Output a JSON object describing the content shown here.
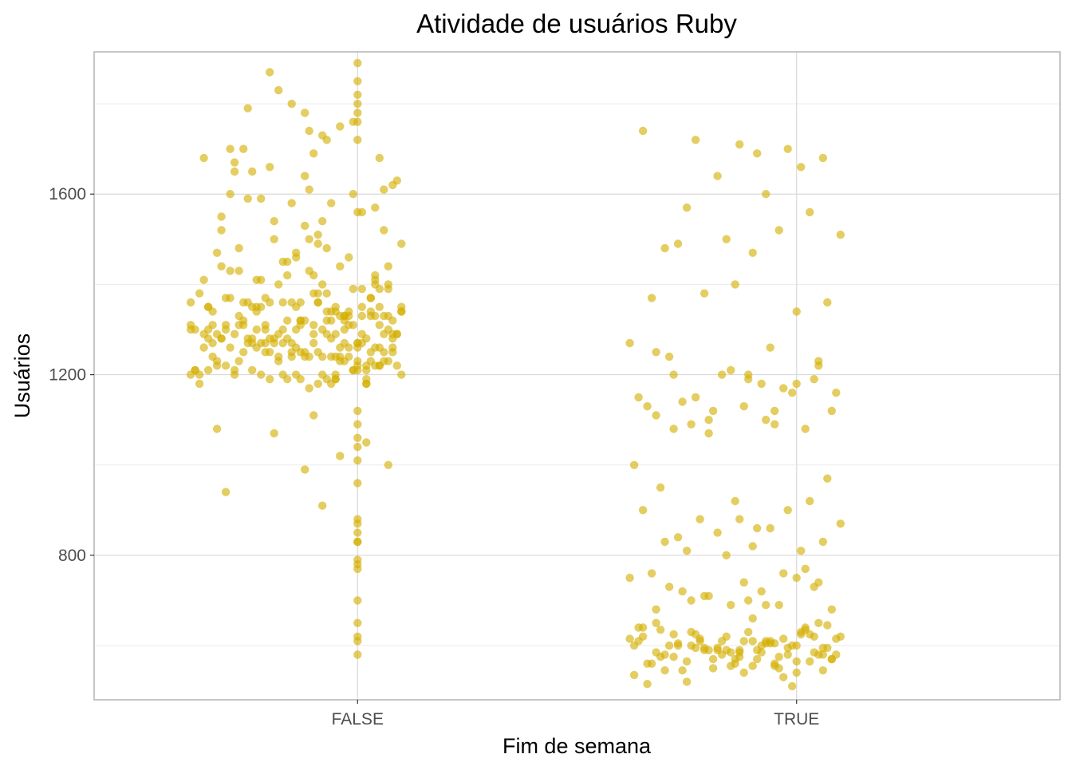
{
  "chart_data": {
    "type": "scatter",
    "title": "Atividade de usuários Ruby",
    "xlabel": "Fim de semana",
    "ylabel": "Usuários",
    "categories": [
      "FALSE",
      "TRUE"
    ],
    "yticks": [
      800,
      1200,
      1600
    ],
    "ylim": [
      480,
      1915
    ],
    "grid": true,
    "legend": "none",
    "point_color": "#D4AF00",
    "series": [
      {
        "category": "FALSE",
        "jitter": [
          0.85,
          0.62,
          1.02,
          0.9,
          0.78,
          0.95,
          1.05,
          0.71,
          0.98,
          1.1,
          0.83,
          0.93,
          0.66,
          1.01,
          0.88,
          0.74,
          1.07,
          0.96,
          0.8,
          0.91,
          1.04,
          0.69,
          0.87,
          0.99,
          0.76,
          1.09,
          0.92,
          0.82,
          1.03,
          0.73,
          0.89,
          1.0,
          0.67,
          0.94,
          1.06,
          0.79,
          0.86,
          1.08,
          0.72,
          0.97,
          0.84,
          0.63,
          1.02,
          0.9,
          0.77,
          0.95,
          1.05,
          0.7,
          0.93,
          0.81,
          1.0,
          0.88,
          0.65,
          1.07,
          0.96,
          0.75,
          0.91,
          1.04,
          0.68,
          0.99,
          0.83,
          0.92,
          1.1,
          0.78,
          0.87,
          0.64,
          1.01,
          0.94,
          0.73,
          1.06,
          0.89,
          0.8,
          0.97,
          0.66,
          1.03,
          0.85,
          0.91,
          1.08,
          0.71,
          0.95,
          0.82,
          0.76,
          1.0,
          0.93,
          0.69,
          1.05,
          0.86,
          0.79,
          0.98,
          0.62,
          1.04,
          0.9,
          0.74,
          1.09,
          0.84,
          0.67,
          0.96,
          1.02,
          0.88,
          0.77,
          0.92,
          1.07,
          0.7,
          0.99,
          0.81,
          0.65,
          1.01,
          0.94,
          0.75,
          1.06,
          0.87,
          0.83,
          0.97,
          0.72,
          1.03,
          0.89,
          0.68,
          1.1,
          0.91,
          0.78,
          0.95,
          0.63,
          1.05,
          0.86,
          0.8,
          1.0,
          0.93,
          0.73,
          1.08,
          0.85,
          0.69,
          0.98,
          0.76,
          1.04,
          0.9,
          0.66,
          1.02,
          0.92,
          0.82,
          0.74,
          1.07,
          0.88,
          0.71,
          0.96,
          1.09,
          0.79,
          0.84,
          0.64,
          1.01,
          0.94,
          0.77,
          1.06,
          0.87,
          0.7,
          0.99,
          0.81,
          1.03,
          0.89,
          0.67,
          1.05,
          0.91,
          0.75,
          0.95,
          0.62,
          1.0,
          0.86,
          0.83,
          1.08,
          0.72,
          0.97,
          0.8,
          0.68,
          1.04,
          0.93,
          0.76,
          1.1,
          0.85,
          0.73,
          0.98,
          0.9,
          0.65,
          1.02,
          0.88,
          0.78,
          0.96,
          1.07,
          0.71,
          0.92,
          0.84,
          0.69,
          1.01,
          0.87,
          0.74,
          1.06,
          0.94,
          0.63,
          0.99,
          0.81,
          0.77,
          1.03,
          0.91,
          0.66,
          1.05,
          0.89,
          0.79,
          0.95,
          0.7,
          1.09,
          0.86,
          0.82,
          1.0,
          0.75,
          0.97,
          0.64,
          1.04,
          0.93,
          0.8,
          0.72,
          1.08,
          0.85,
          0.68,
          0.98,
          0.9,
          0.76,
          1.02,
          0.88,
          0.67,
          0.96,
          1.07,
          0.83,
          0.73,
          0.92,
          1.1,
          0.79,
          0.87,
          0.65,
          1.01,
          0.94,
          0.71,
          1.06,
          0.84,
          0.78,
          0.99,
          0.62,
          1.03,
          0.91,
          0.74,
          1.05,
          0.89,
          0.69,
          0.95,
          0.82,
          1.0,
          0.86,
          0.77,
          1.08,
          0.66,
          0.97,
          0.8,
          0.93,
          1.04,
          0.72,
          0.85,
          0.98,
          0.75,
          1.02,
          0.9,
          0.68,
          0.88,
          0.96,
          0.81,
          1.07,
          0.7,
          0.92
        ],
        "y": [
          1250,
          1310,
          1180,
          1420,
          1270,
          1350,
          1220,
          1600,
          1330,
          1490,
          1200,
          1380,
          1280,
          1560,
          1240,
          1700,
          1300,
          1440,
          1190,
          1360,
          1260,
          1520,
          1320,
          1210,
          1650,
          1290,
          1400,
          1230,
          1340,
          1480,
          1170,
          1270,
          1310,
          1580,
          1250,
          1370,
          1200,
          1620,
          1290,
          1330,
          1450,
          1210,
          1280,
          1690,
          1350,
          1240,
          1390,
          1300,
          1190,
          1540,
          1260,
          1320,
          1410,
          1230,
          1750,
          1280,
          1360,
          1220,
          1470,
          1310,
          1270,
          1200,
          1340,
          1590,
          1250,
          1380,
          1290,
          1180,
          1430,
          1330,
          1240,
          1660,
          1300,
          1210,
          1370,
          1270,
          1510,
          1320,
          1260,
          1190,
          1400,
          1350,
          1230,
          1720,
          1280,
          1310,
          1460,
          1250,
          1340,
          1200,
          1570,
          1290,
          1360,
          1220,
          1420,
          1270,
          1330,
          1180,
          1640,
          1300,
          1240,
          1390,
          1310,
          1210,
          1500,
          1260,
          1350,
          1280,
          1790,
          1230,
          1320,
          1450,
          1270,
          1200,
          1370,
          1610,
          1290,
          1340,
          1250,
          1410,
          1190,
          1300,
          1680,
          1260,
          1360,
          1220,
          1480,
          1330,
          1280,
          1240,
          1550,
          1310,
          1210,
          1400,
          1270,
          1350,
          1190,
          1730,
          1290,
          1320,
          1440,
          1250,
          1370,
          1230,
          1630,
          1300,
          1280,
          1200,
          1390,
          1340,
          1260,
          1520,
          1310,
          1220,
          1760,
          1270,
          1330,
          1430,
          1240,
          1350,
          1180,
          1590,
          1290,
          1300,
          1210,
          1470,
          1360,
          1250,
          1670,
          1320,
          1280,
          1230,
          1410,
          1340,
          1270,
          1200,
          1800,
          1310,
          1260,
          1380,
          1290,
          1220,
          1530,
          1350,
          1240,
          1330,
          1700,
          1300,
          1190,
          1440,
          1270,
          1360,
          1250,
          1610,
          1320,
          1210,
          1390,
          1280,
          1340,
          1230,
          1490,
          1300,
          1260,
          1740,
          1310,
          1200,
          1370,
          1290,
          1350,
          1240,
          1560,
          1270,
          1330,
          1180,
          1420,
          1320,
          1250,
          1650,
          1290,
          1360,
          1220,
          1460,
          1310,
          1280,
          1210,
          1780,
          1340,
          1260,
          1400,
          1300,
          1230,
          1540,
          1350,
          1270,
          1190,
          1680,
          1330,
          1240,
          1430,
          1290,
          1320,
          1200,
          1600,
          1360,
          1250,
          1380,
          1310,
          1220,
          1500,
          1280,
          1340,
          1830,
          1270,
          1300,
          1410,
          1260,
          1350,
          1230,
          1870,
          1290,
          1330,
          1210,
          1580,
          1240,
          1360,
          1050,
          1110,
          1080,
          990,
          1020,
          1070,
          1000,
          940,
          910,
          850,
          880,
          830,
          790,
          770,
          780,
          700,
          650,
          620,
          580,
          610,
          1040,
          1090,
          1010,
          830,
          870,
          1120,
          1060,
          960,
          1850,
          1820,
          1890,
          1760,
          1780,
          1720,
          1800
        ]
      },
      {
        "category": "TRUE",
        "jitter": [
          0.9,
          0.7,
          1.05,
          0.82,
          0.95,
          0.65,
          1.0,
          0.88,
          0.76,
          1.08,
          0.93,
          0.68,
          0.85,
          1.02,
          0.79,
          0.97,
          0.72,
          1.06,
          0.9,
          0.63,
          0.87,
          1.01,
          0.75,
          0.94,
          1.09,
          0.81,
          0.69,
          0.98,
          0.86,
          1.04,
          0.73,
          0.92,
          0.66,
          1.07,
          0.84,
          0.78,
          0.96,
          1.0,
          0.71,
          0.89,
          1.03,
          0.64,
          0.83,
          0.95,
          0.77,
          1.06,
          0.91,
          0.68,
          0.99,
          0.85,
          0.74,
          1.1,
          0.8,
          0.93,
          0.67,
          1.02,
          0.87,
          0.76,
          0.97,
          0.62,
          1.05,
          0.82,
          0.9,
          0.72,
          1.08,
          0.94,
          0.79,
          0.65,
          1.0,
          0.88,
          0.75,
          1.04,
          0.92,
          0.69,
          0.96,
          0.84,
          1.07,
          0.78,
          0.63,
          0.98,
          0.86,
          1.01,
          0.73,
          0.91,
          0.66,
          1.09,
          0.81,
          0.95,
          0.7,
          1.03,
          0.87,
          0.77,
          0.99,
          0.64,
          1.06,
          0.83,
          0.93,
          0.74,
          1.0,
          0.89,
          0.68,
          1.05,
          0.8,
          0.97,
          0.71,
          0.85,
          1.02,
          0.76,
          0.92,
          0.62,
          1.08,
          0.88,
          0.79,
          0.96,
          0.67,
          1.04,
          0.84,
          0.73,
          1.1,
          0.9,
          0.65,
          0.94,
          1.01,
          0.78,
          0.86,
          0.7,
          1.07,
          0.82,
          0.98,
          0.75,
          0.91,
          1.03,
          0.69,
          0.87,
          0.63,
          1.06,
          0.93,
          0.77,
          1.0,
          0.81,
          0.72,
          0.95,
          1.09,
          0.66,
          0.85,
          1.02,
          0.89,
          0.74,
          0.97,
          0.68,
          1.05,
          0.8,
          0.92,
          0.64,
          1.08,
          0.83,
          0.76,
          0.99,
          0.88,
          1.04,
          0.71,
          0.94,
          0.67,
          1.0,
          0.86,
          0.79,
          1.07,
          0.62,
          0.9,
          0.96,
          0.73,
          1.03,
          0.84,
          0.7,
          1.1,
          0.91,
          0.77,
          0.98,
          0.65,
          1.06,
          0.87,
          0.82,
          0.93,
          1.01,
          0.75,
          0.68,
          1.05,
          0.89,
          0.8,
          0.95,
          0.72,
          1.09,
          0.85,
          0.63,
          0.99,
          0.92,
          0.78,
          1.02,
          0.69,
          0.86,
          1.07,
          0.74,
          0.96,
          0.81
        ],
        "y": [
          610,
          580,
          650,
          590,
          560,
          620,
          600,
          540,
          630,
          570,
          605,
          585,
          555,
          640,
          595,
          615,
          575,
          545,
          660,
          600,
          590,
          625,
          565,
          610,
          580,
          550,
          635,
          595,
          570,
          620,
          605,
          585,
          560,
          645,
          590,
          615,
          575,
          540,
          600,
          630,
          565,
          610,
          580,
          555,
          625,
          595,
          570,
          650,
          600,
          585,
          545,
          620,
          590,
          610,
          560,
          635,
          575,
          600,
          530,
          615,
          580,
          595,
          555,
          625,
          570,
          605,
          590,
          640,
          565,
          610,
          520,
          585,
          600,
          575,
          550,
          620,
          595,
          610,
          535,
          580,
          560,
          630,
          600,
          590,
          515,
          615,
          570,
          605,
          545,
          625,
          585,
          595,
          510,
          640,
          580,
          610,
          690,
          720,
          750,
          700,
          680,
          740,
          710,
          760,
          730,
          690,
          770,
          700,
          720,
          750,
          680,
          740,
          710,
          690,
          760,
          730,
          800,
          840,
          870,
          820,
          900,
          860,
          810,
          880,
          920,
          830,
          970,
          850,
          900,
          810,
          860,
          920,
          950,
          880,
          1000,
          830,
          1100,
          1150,
          1180,
          1120,
          1200,
          1090,
          1160,
          1130,
          1210,
          1080,
          1190,
          1140,
          1170,
          1110,
          1220,
          1070,
          1180,
          1150,
          1120,
          1200,
          1090,
          1160,
          1130,
          1190,
          1240,
          1260,
          1370,
          1340,
          1400,
          1380,
          1360,
          1270,
          1470,
          1520,
          1490,
          1560,
          1500,
          1480,
          1510,
          1690,
          1720,
          1700,
          1740,
          1680,
          1710,
          1640,
          1600,
          1660,
          1570,
          1250,
          1230,
          1200,
          1100,
          1120,
          1080
        ]
      }
    ]
  }
}
